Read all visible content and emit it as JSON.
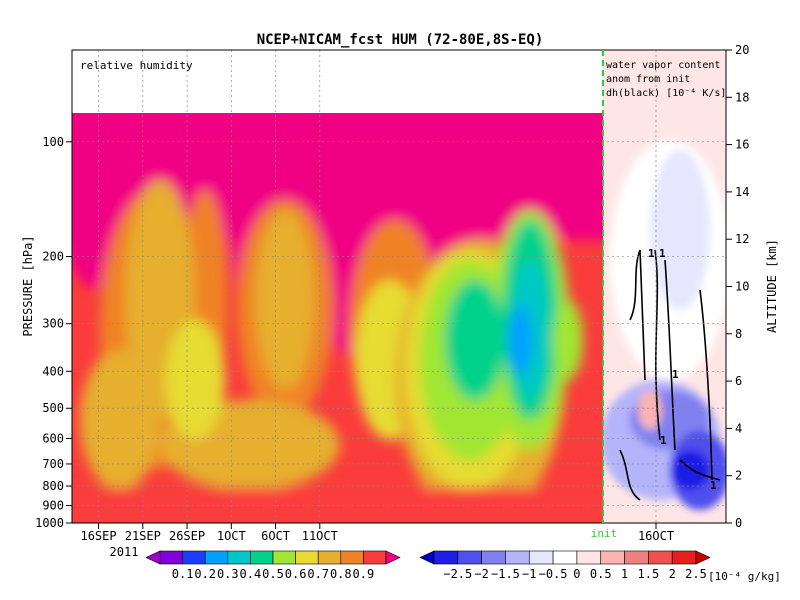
{
  "chart_data": {
    "type": "heatmap",
    "title": "NCEP+NICAM_fcst HUM (72-80E,8S-EQ)",
    "left_panel": {
      "label": "relative humidity",
      "x_ticks": [
        "16SEP",
        "21SEP",
        "26SEP",
        "1OCT",
        "6OCT",
        "11OCT"
      ],
      "x_year": "2011",
      "init_label": "init"
    },
    "right_panel": {
      "label_lines": [
        "water vapor content",
        "anom from init",
        "dh(black) [10⁻⁴ K/s]"
      ],
      "x_ticks": [
        "16OCT"
      ],
      "contour_labels": [
        "1",
        "1",
        "1",
        "1",
        "1"
      ]
    },
    "y_left": {
      "label": "PRESSURE [hPa]",
      "ticks": [
        100,
        200,
        300,
        400,
        500,
        600,
        700,
        800,
        900,
        1000
      ]
    },
    "y_right": {
      "label": "ALTITUDE [km]",
      "ticks": [
        0,
        2,
        4,
        6,
        8,
        10,
        12,
        14,
        16,
        18,
        20
      ]
    },
    "colorbar_rh": {
      "labels": [
        "0.1",
        "0.2",
        "0.3",
        "0.4",
        "0.5",
        "0.6",
        "0.7",
        "0.8",
        "0.9"
      ],
      "colors": [
        "#a000c8",
        "#8200dc",
        "#1e3cff",
        "#00a0ff",
        "#00c8c8",
        "#00d28c",
        "#a0e632",
        "#e6dc32",
        "#e6af2d",
        "#f08228",
        "#fa3c3c",
        "#f00082"
      ]
    },
    "colorbar_anom": {
      "labels": [
        "−2.5",
        "−2",
        "−1.5",
        "−1",
        "−0.5",
        "0",
        "0.5",
        "1",
        "1.5",
        "2",
        "2.5"
      ],
      "unit": "[10⁻⁴ g/kg]",
      "colors": [
        "#0000c8",
        "#1e1ee6",
        "#5050f0",
        "#8080f0",
        "#b4b4fa",
        "#e6e6ff",
        "#ffffff",
        "#ffe6e6",
        "#fab4b4",
        "#f08080",
        "#f05050",
        "#e61e1e",
        "#c80000"
      ]
    }
  }
}
